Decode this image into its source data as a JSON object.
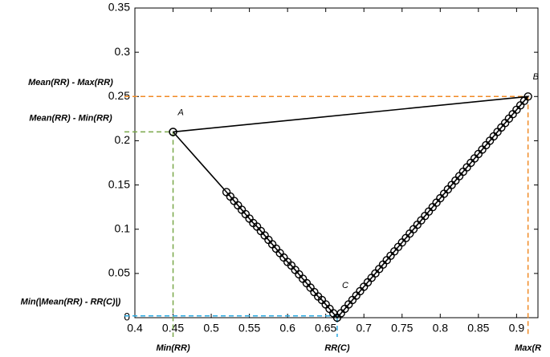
{
  "chart_data": {
    "type": "line",
    "xlim": [
      0.4,
      0.928
    ],
    "ylim": [
      0,
      0.35
    ],
    "xticks": [
      0.4,
      0.45,
      0.5,
      0.55,
      0.6,
      0.65,
      0.7,
      0.75,
      0.8,
      0.85,
      0.9
    ],
    "yticks": [
      0,
      0.05,
      0.1,
      0.15,
      0.2,
      0.25,
      0.3,
      0.35
    ],
    "series": [
      {
        "color": "#000000",
        "x": [
          0.45,
          0.52,
          0.525,
          0.53,
          0.535,
          0.54,
          0.545,
          0.55,
          0.555,
          0.56,
          0.565,
          0.57,
          0.575,
          0.58,
          0.585,
          0.59,
          0.595,
          0.6,
          0.605,
          0.61,
          0.615,
          0.62,
          0.625,
          0.63,
          0.635,
          0.64,
          0.645,
          0.65,
          0.655,
          0.66,
          0.665,
          0.67,
          0.675,
          0.68,
          0.685,
          0.69,
          0.695,
          0.7,
          0.705,
          0.71,
          0.715,
          0.72,
          0.725,
          0.73,
          0.735,
          0.74,
          0.745,
          0.75,
          0.755,
          0.76,
          0.765,
          0.77,
          0.775,
          0.78,
          0.785,
          0.79,
          0.795,
          0.8,
          0.805,
          0.81,
          0.815,
          0.82,
          0.825,
          0.83,
          0.835,
          0.84,
          0.845,
          0.85,
          0.855,
          0.86,
          0.865,
          0.87,
          0.875,
          0.88,
          0.885,
          0.89,
          0.895,
          0.9,
          0.905,
          0.91,
          0.915,
          0.45
        ],
        "values": [
          0.21,
          0.142,
          0.137,
          0.132,
          0.127,
          0.122,
          0.117,
          0.112,
          0.107,
          0.103,
          0.098,
          0.093,
          0.088,
          0.083,
          0.078,
          0.073,
          0.068,
          0.063,
          0.059,
          0.054,
          0.049,
          0.044,
          0.039,
          0.034,
          0.029,
          0.024,
          0.02,
          0.015,
          0.01,
          0.005,
          0,
          0.005,
          0.01,
          0.015,
          0.02,
          0.025,
          0.03,
          0.035,
          0.04,
          0.045,
          0.05,
          0.055,
          0.06,
          0.065,
          0.07,
          0.075,
          0.08,
          0.085,
          0.09,
          0.095,
          0.1,
          0.105,
          0.11,
          0.115,
          0.12,
          0.125,
          0.13,
          0.135,
          0.14,
          0.145,
          0.15,
          0.155,
          0.16,
          0.165,
          0.17,
          0.175,
          0.18,
          0.185,
          0.19,
          0.195,
          0.2,
          0.205,
          0.21,
          0.215,
          0.22,
          0.225,
          0.23,
          0.235,
          0.24,
          0.245,
          0.25,
          0.21
        ]
      }
    ],
    "point_labels": [
      "A",
      "B",
      "C"
    ],
    "guides": [
      {
        "label": "Mean(RR)  - Max(RR)",
        "color": "#f08a24",
        "axis": "y",
        "x": 0.915,
        "y": 0.25
      },
      {
        "label": "Mean(RR)  - Min(RR)",
        "color": "#7aa84a",
        "axis": "y",
        "x": 0.45,
        "y": 0.21
      },
      {
        "label": "Min(|Mean(RR)  -  RR(C)|)",
        "color": "#29a9e0",
        "axis": "y",
        "x": 0.665,
        "y": 0.002
      },
      {
        "label": "Min(RR)",
        "color": "#7aa84a",
        "axis": "x",
        "x": 0.45,
        "y": 0.21
      },
      {
        "label": "RR(C)",
        "color": "#29a9e0",
        "axis": "x",
        "x": 0.665,
        "y": 0
      },
      {
        "label": "Max(R",
        "color": "#f08a24",
        "axis": "x",
        "x": 0.915,
        "y": 0.25
      }
    ]
  }
}
